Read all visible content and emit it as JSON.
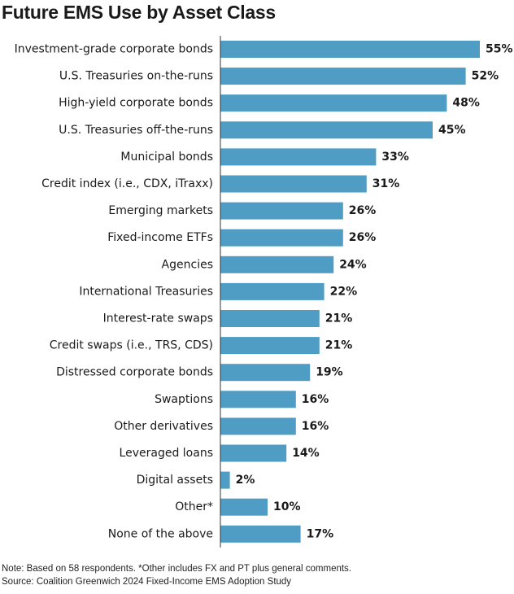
{
  "chart_data": {
    "type": "bar",
    "orientation": "horizontal",
    "title": "Future EMS Use by Asset Class",
    "categories": [
      "Investment-grade corporate bonds",
      "U.S. Treasuries on-the-runs",
      "High-yield corporate bonds",
      "U.S. Treasuries off-the-runs",
      "Municipal bonds",
      "Credit index (i.e., CDX, iTraxx)",
      "Emerging markets",
      "Fixed-income ETFs",
      "Agencies",
      "International Treasuries",
      "Interest-rate swaps",
      "Credit swaps (i.e., TRS, CDS)",
      "Distressed corporate bonds",
      "Swaptions",
      "Other derivatives",
      "Leveraged loans",
      "Digital assets",
      "Other*",
      "None of the above"
    ],
    "values": [
      55,
      52,
      48,
      45,
      33,
      31,
      26,
      26,
      24,
      22,
      21,
      21,
      19,
      16,
      16,
      14,
      2,
      10,
      17
    ],
    "value_labels": [
      "55%",
      "52%",
      "48%",
      "45%",
      "33%",
      "31%",
      "26%",
      "26%",
      "24%",
      "22%",
      "21%",
      "21%",
      "19%",
      "16%",
      "16%",
      "14%",
      "2%",
      "10%",
      "17%"
    ],
    "xlim": [
      0,
      55
    ],
    "grid": false,
    "bar_color": "#4f9cc4"
  },
  "notes": {
    "note": "Note: Based on 58 respondents. *Other includes FX and PT plus general comments.",
    "source": "Source: Coalition Greenwich 2024 Fixed-Income EMS Adoption Study"
  }
}
